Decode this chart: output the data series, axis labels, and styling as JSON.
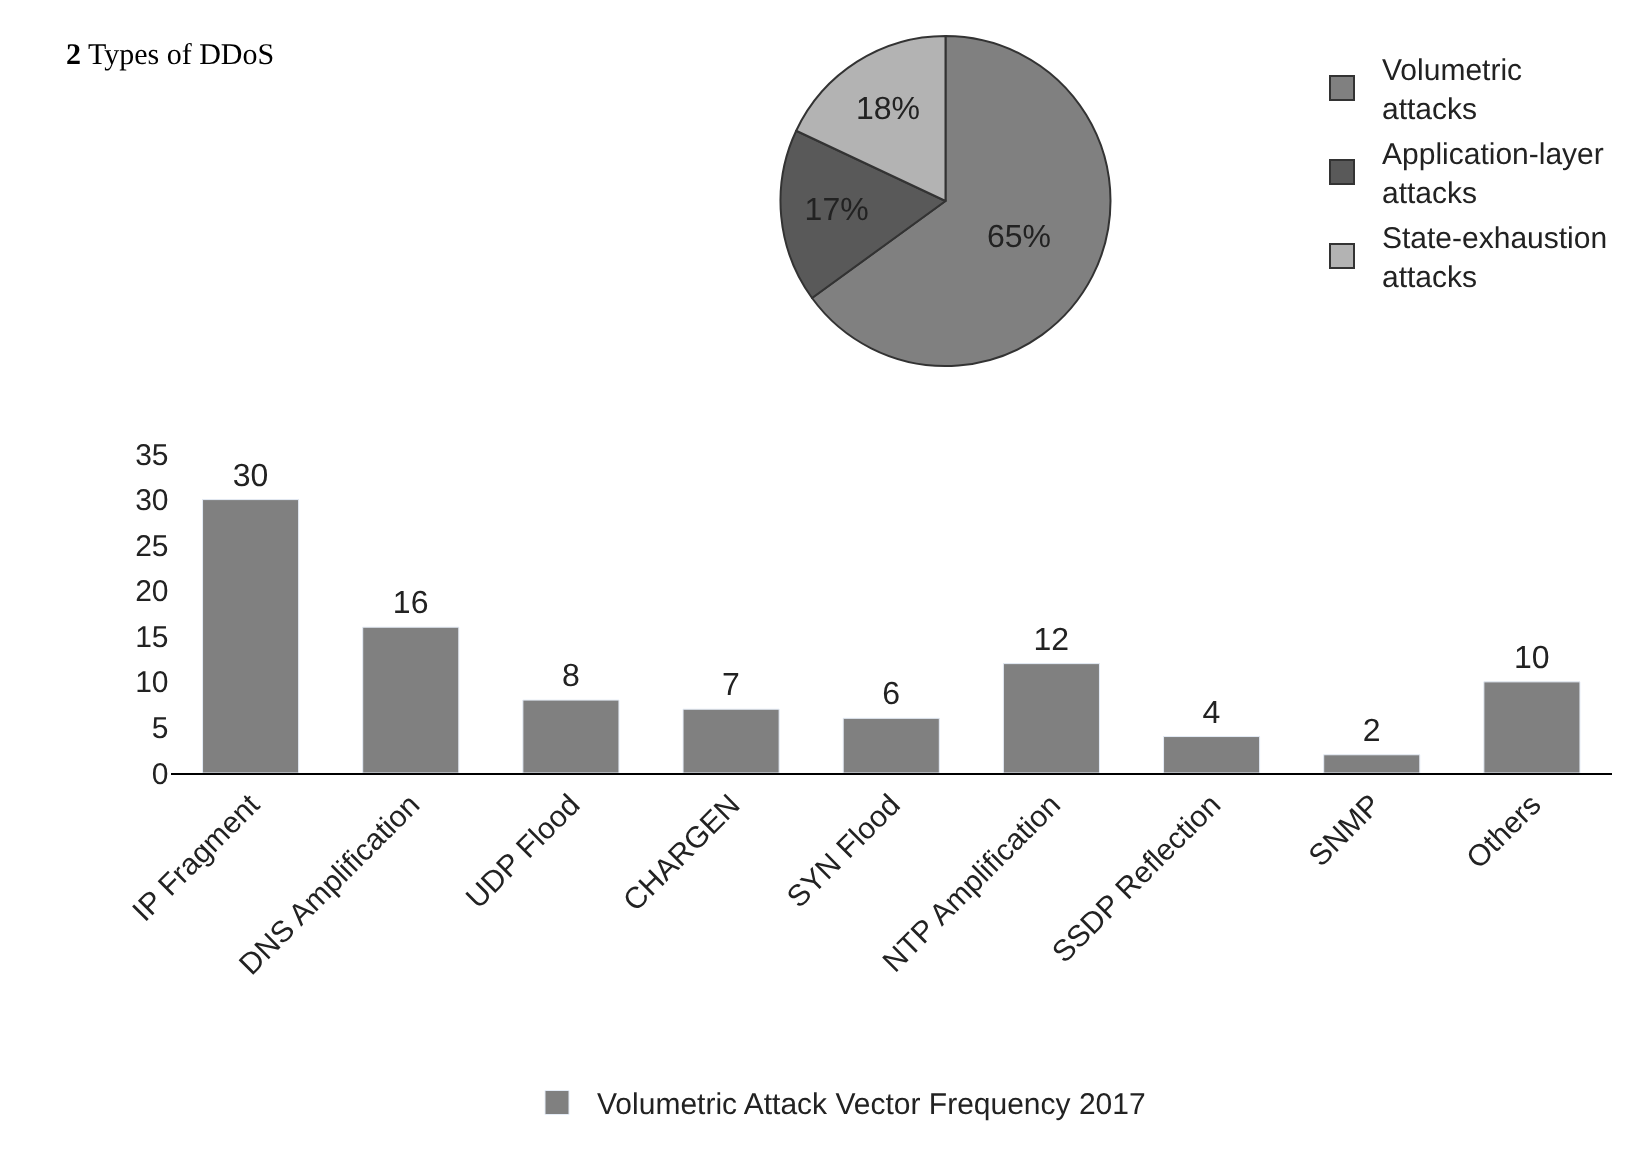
{
  "chart_data": [
    {
      "type": "pie",
      "annotations": [
        "2 Types of DDoS"
      ],
      "categories": [
        "Volumetric attacks",
        "Application-layer attacks",
        "State-exhaustion attacks"
      ],
      "values": [
        65,
        17,
        18
      ],
      "value_labels": [
        "65%",
        "17%",
        "18%"
      ],
      "colors": [
        "#808080",
        "#595959",
        "#b3b3b3"
      ],
      "legend": "right"
    },
    {
      "type": "bar",
      "categories": [
        "IP Fragment",
        "DNS Amplification",
        "UDP Flood",
        "CHARGEN",
        "SYN Flood",
        "NTP Amplification",
        "SSDP Reflection",
        "SNMP",
        "Others"
      ],
      "series": [
        {
          "name": "Volumetric Attack Vector Frequency 2017",
          "color": "#808080",
          "values": [
            30,
            16,
            8,
            7,
            6,
            12,
            4,
            2,
            10
          ]
        }
      ],
      "ylim": [
        0,
        35
      ],
      "yticks": [
        0,
        5,
        10,
        15,
        20,
        25,
        30,
        35
      ],
      "data_labels": true,
      "legend": "bottom"
    }
  ]
}
